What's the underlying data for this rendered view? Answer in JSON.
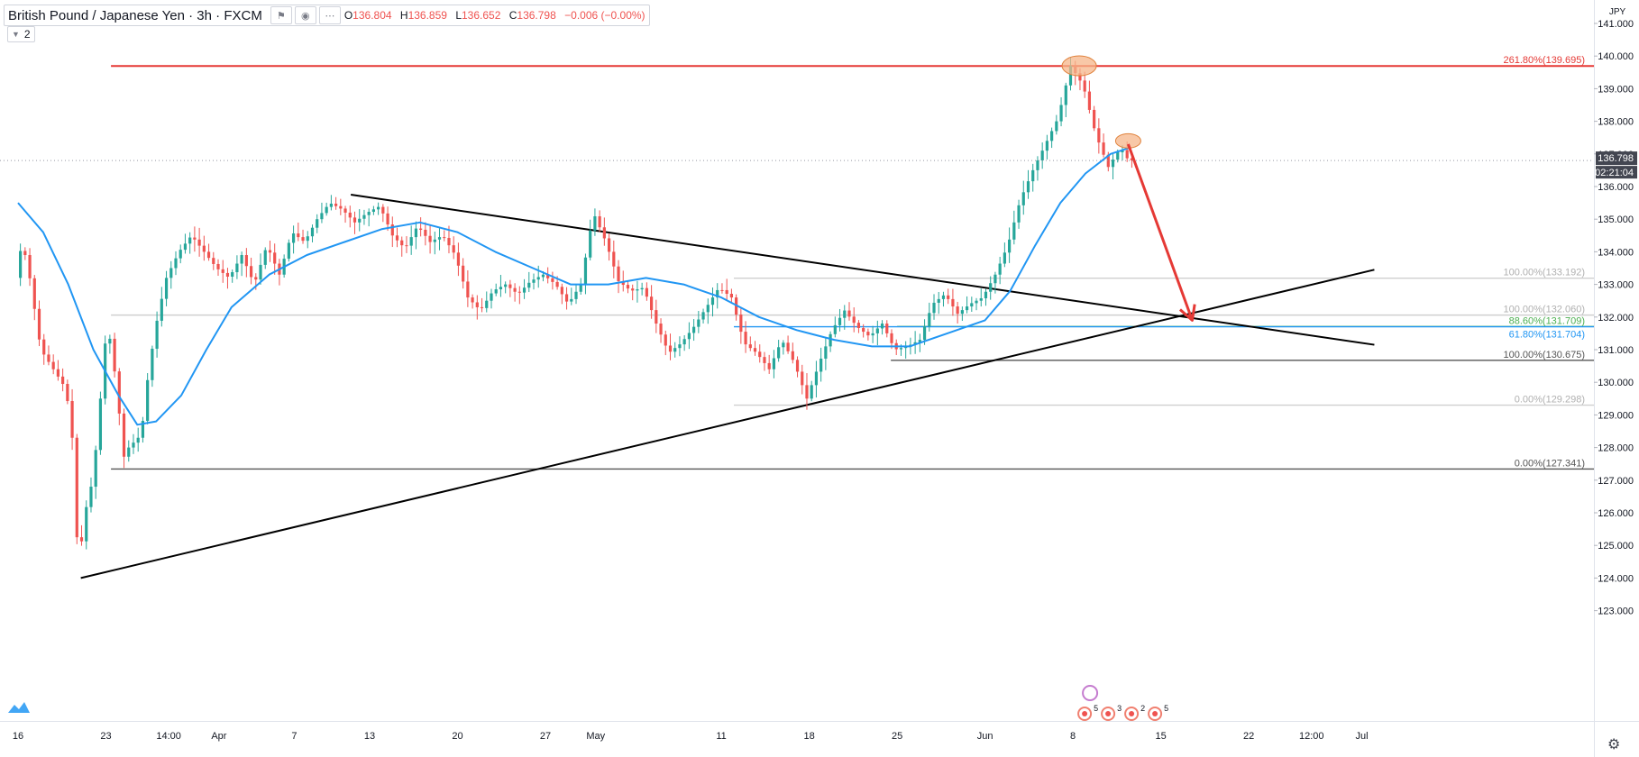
{
  "header": {
    "symbol": "British Pound / Japanese Yen · 3h · FXCM",
    "ohlc": {
      "open_label": "O",
      "open": "136.804",
      "high_label": "H",
      "high": "136.859",
      "low_label": "L",
      "low": "136.652",
      "close_label": "C",
      "close": "136.798",
      "change": "−0.006 (−0.00%)"
    },
    "studies_count": "2"
  },
  "colors": {
    "down": "#ef5350",
    "up": "#26a69a",
    "ma": "#2196f3",
    "resistance": "#e53935",
    "trend": "#000000",
    "fib_grey": "#9e9e9e",
    "fib_green": "#4caf50",
    "fib_blue": "#2196f3",
    "target_arrow": "#e53935",
    "highlight": "#f5b58a"
  },
  "chart_data": {
    "type": "line",
    "title": "British Pound / Japanese Yen · 3h · FXCM",
    "y_axis": {
      "unit": "JPY",
      "min": 122.6,
      "max": 141.3,
      "ticks": [
        "123.000",
        "124.000",
        "125.000",
        "126.000",
        "127.000",
        "128.000",
        "129.000",
        "130.000",
        "131.000",
        "132.000",
        "133.000",
        "134.000",
        "135.000",
        "136.000",
        "137.000",
        "138.000",
        "139.000",
        "140.000",
        "141.000"
      ]
    },
    "x_axis": {
      "min_day": 0,
      "max_day": 108,
      "ticks": [
        {
          "day": 0,
          "label": "16"
        },
        {
          "day": 7,
          "label": "23"
        },
        {
          "day": 12,
          "label": "14:00"
        },
        {
          "day": 16,
          "label": "Apr"
        },
        {
          "day": 22,
          "label": "7"
        },
        {
          "day": 28,
          "label": "13"
        },
        {
          "day": 35,
          "label": "20"
        },
        {
          "day": 42,
          "label": "27"
        },
        {
          "day": 46,
          "label": "May"
        },
        {
          "day": 56,
          "label": "11"
        },
        {
          "day": 63,
          "label": "18"
        },
        {
          "day": 70,
          "label": "25"
        },
        {
          "day": 77,
          "label": "Jun"
        },
        {
          "day": 84,
          "label": "8"
        },
        {
          "day": 91,
          "label": "15"
        },
        {
          "day": 98,
          "label": "22"
        },
        {
          "day": 103,
          "label": "12:00"
        },
        {
          "day": 107,
          "label": "Jul"
        }
      ]
    },
    "price_path": [
      {
        "day": 0,
        "price": 133.2
      },
      {
        "day": 0.5,
        "price": 134.3
      },
      {
        "day": 1,
        "price": 133.5
      },
      {
        "day": 2,
        "price": 131.0
      },
      {
        "day": 3,
        "price": 130.4
      },
      {
        "day": 4,
        "price": 129.8
      },
      {
        "day": 4.6,
        "price": 128.0
      },
      {
        "day": 5,
        "price": 124.0
      },
      {
        "day": 5.4,
        "price": 125.8
      },
      {
        "day": 6,
        "price": 126.8
      },
      {
        "day": 6.6,
        "price": 128.6
      },
      {
        "day": 7,
        "price": 131.0
      },
      {
        "day": 7.4,
        "price": 131.6
      },
      {
        "day": 8,
        "price": 130.0
      },
      {
        "day": 8.6,
        "price": 127.7
      },
      {
        "day": 9,
        "price": 128.0
      },
      {
        "day": 10,
        "price": 128.4
      },
      {
        "day": 10.6,
        "price": 130.4
      },
      {
        "day": 11.3,
        "price": 132.0
      },
      {
        "day": 12,
        "price": 133.2
      },
      {
        "day": 13,
        "price": 134.0
      },
      {
        "day": 14,
        "price": 134.5
      },
      {
        "day": 15,
        "price": 134.0
      },
      {
        "day": 16,
        "price": 133.5
      },
      {
        "day": 17,
        "price": 133.2
      },
      {
        "day": 18,
        "price": 133.9
      },
      {
        "day": 19,
        "price": 133.0
      },
      {
        "day": 20,
        "price": 134.2
      },
      {
        "day": 21,
        "price": 133.3
      },
      {
        "day": 22,
        "price": 134.6
      },
      {
        "day": 23,
        "price": 134.3
      },
      {
        "day": 24,
        "price": 135.0
      },
      {
        "day": 25,
        "price": 135.5
      },
      {
        "day": 26,
        "price": 135.3
      },
      {
        "day": 27,
        "price": 134.9
      },
      {
        "day": 28,
        "price": 135.2
      },
      {
        "day": 29,
        "price": 135.4
      },
      {
        "day": 30,
        "price": 134.5
      },
      {
        "day": 31,
        "price": 134.1
      },
      {
        "day": 32,
        "price": 134.8
      },
      {
        "day": 33,
        "price": 134.3
      },
      {
        "day": 34,
        "price": 134.5
      },
      {
        "day": 35,
        "price": 133.9
      },
      {
        "day": 36,
        "price": 132.6
      },
      {
        "day": 37,
        "price": 132.2
      },
      {
        "day": 38,
        "price": 132.8
      },
      {
        "day": 39,
        "price": 133.0
      },
      {
        "day": 40,
        "price": 132.7
      },
      {
        "day": 41,
        "price": 133.1
      },
      {
        "day": 42,
        "price": 133.3
      },
      {
        "day": 43,
        "price": 133.0
      },
      {
        "day": 44,
        "price": 132.4
      },
      {
        "day": 45,
        "price": 133.0
      },
      {
        "day": 46,
        "price": 135.2
      },
      {
        "day": 47,
        "price": 134.3
      },
      {
        "day": 48,
        "price": 133.1
      },
      {
        "day": 49,
        "price": 132.8
      },
      {
        "day": 50,
        "price": 132.9
      },
      {
        "day": 51,
        "price": 131.8
      },
      {
        "day": 52,
        "price": 130.9
      },
      {
        "day": 53,
        "price": 131.2
      },
      {
        "day": 54,
        "price": 131.7
      },
      {
        "day": 55,
        "price": 132.3
      },
      {
        "day": 56,
        "price": 132.9
      },
      {
        "day": 57,
        "price": 132.6
      },
      {
        "day": 58,
        "price": 131.2
      },
      {
        "day": 59,
        "price": 130.9
      },
      {
        "day": 60,
        "price": 130.4
      },
      {
        "day": 61,
        "price": 131.3
      },
      {
        "day": 62,
        "price": 130.6
      },
      {
        "day": 63,
        "price": 129.5
      },
      {
        "day": 64,
        "price": 130.6
      },
      {
        "day": 65,
        "price": 131.6
      },
      {
        "day": 66,
        "price": 132.2
      },
      {
        "day": 67,
        "price": 131.7
      },
      {
        "day": 68,
        "price": 131.4
      },
      {
        "day": 69,
        "price": 131.8
      },
      {
        "day": 70,
        "price": 131.0
      },
      {
        "day": 71,
        "price": 131.1
      },
      {
        "day": 72,
        "price": 131.3
      },
      {
        "day": 73,
        "price": 132.4
      },
      {
        "day": 74,
        "price": 132.7
      },
      {
        "day": 75,
        "price": 132.1
      },
      {
        "day": 76,
        "price": 132.4
      },
      {
        "day": 77,
        "price": 132.6
      },
      {
        "day": 78,
        "price": 133.3
      },
      {
        "day": 79,
        "price": 134.2
      },
      {
        "day": 80,
        "price": 135.6
      },
      {
        "day": 81,
        "price": 136.5
      },
      {
        "day": 82,
        "price": 137.3
      },
      {
        "day": 83,
        "price": 138.1
      },
      {
        "day": 84,
        "price": 139.7
      },
      {
        "day": 85,
        "price": 139.1
      },
      {
        "day": 86,
        "price": 137.6
      },
      {
        "day": 87,
        "price": 136.6
      },
      {
        "day": 88,
        "price": 137.2
      },
      {
        "day": 88.6,
        "price": 136.8
      }
    ],
    "moving_average": [
      {
        "day": 0,
        "price": 135.5
      },
      {
        "day": 2,
        "price": 134.6
      },
      {
        "day": 4,
        "price": 133.0
      },
      {
        "day": 6,
        "price": 131.0
      },
      {
        "day": 8,
        "price": 129.6
      },
      {
        "day": 9.5,
        "price": 128.7
      },
      {
        "day": 11,
        "price": 128.8
      },
      {
        "day": 13,
        "price": 129.6
      },
      {
        "day": 15,
        "price": 131.0
      },
      {
        "day": 17,
        "price": 132.3
      },
      {
        "day": 20,
        "price": 133.3
      },
      {
        "day": 23,
        "price": 133.9
      },
      {
        "day": 26,
        "price": 134.3
      },
      {
        "day": 29,
        "price": 134.7
      },
      {
        "day": 32,
        "price": 134.9
      },
      {
        "day": 35,
        "price": 134.6
      },
      {
        "day": 38,
        "price": 134.0
      },
      {
        "day": 41,
        "price": 133.5
      },
      {
        "day": 44,
        "price": 133.0
      },
      {
        "day": 47,
        "price": 133.0
      },
      {
        "day": 50,
        "price": 133.2
      },
      {
        "day": 53,
        "price": 133.0
      },
      {
        "day": 56,
        "price": 132.6
      },
      {
        "day": 59,
        "price": 132.0
      },
      {
        "day": 62,
        "price": 131.6
      },
      {
        "day": 65,
        "price": 131.3
      },
      {
        "day": 68,
        "price": 131.1
      },
      {
        "day": 71,
        "price": 131.1
      },
      {
        "day": 74,
        "price": 131.5
      },
      {
        "day": 77,
        "price": 131.9
      },
      {
        "day": 79,
        "price": 132.8
      },
      {
        "day": 81,
        "price": 134.2
      },
      {
        "day": 83,
        "price": 135.5
      },
      {
        "day": 85,
        "price": 136.4
      },
      {
        "day": 87,
        "price": 137.0
      },
      {
        "day": 88.6,
        "price": 137.2
      }
    ],
    "levels": [
      {
        "label": "261.80%(139.695)",
        "price": 139.695,
        "from_day": 7.4,
        "color": "#e53935",
        "text_color": "#e53935"
      },
      {
        "label": "100.00%(133.192)",
        "price": 133.192,
        "from_day": 57,
        "color": "#cfcfcf",
        "text_color": "#b0b0b0"
      },
      {
        "label": "100.00%(132.060)",
        "price": 132.06,
        "from_day": 7.4,
        "color": "#cfcfcf",
        "text_color": "#b0b0b0"
      },
      {
        "label": "88.60%(131.709)",
        "price": 131.709,
        "from_day": 70,
        "color": "#4caf50",
        "text_color": "#4caf50"
      },
      {
        "label": "61.80%(131.704)",
        "price": 131.704,
        "from_day": 57,
        "color": "#2196f3",
        "text_color": "#2196f3"
      },
      {
        "label": "100.00%(130.675)",
        "price": 130.675,
        "from_day": 69.5,
        "color": "#555555",
        "text_color": "#555555"
      },
      {
        "label": "0.00%(129.298)",
        "price": 129.298,
        "from_day": 57,
        "color": "#cfcfcf",
        "text_color": "#b0b0b0"
      },
      {
        "label": "0.00%(127.341)",
        "price": 127.341,
        "from_day": 7.4,
        "color": "#555555",
        "text_color": "#555555"
      }
    ],
    "trendlines": [
      {
        "from": {
          "day": 5,
          "price": 124.0
        },
        "to": {
          "day": 108,
          "price": 133.45
        }
      },
      {
        "from": {
          "day": 26.5,
          "price": 135.75
        },
        "to": {
          "day": 108,
          "price": 131.15
        }
      }
    ],
    "forecast_arrow": {
      "from": {
        "day": 88.4,
        "price": 137.3
      },
      "to": {
        "day": 93.5,
        "price": 131.9
      }
    },
    "highlights": [
      {
        "day": 84.5,
        "price": 139.7
      },
      {
        "day": 88.4,
        "price": 137.4
      }
    ],
    "last_price": {
      "value": "136.798",
      "countdown": "02:21:04",
      "price": 136.798
    },
    "events": [
      "5",
      "3",
      "2",
      "5"
    ],
    "legend": []
  }
}
